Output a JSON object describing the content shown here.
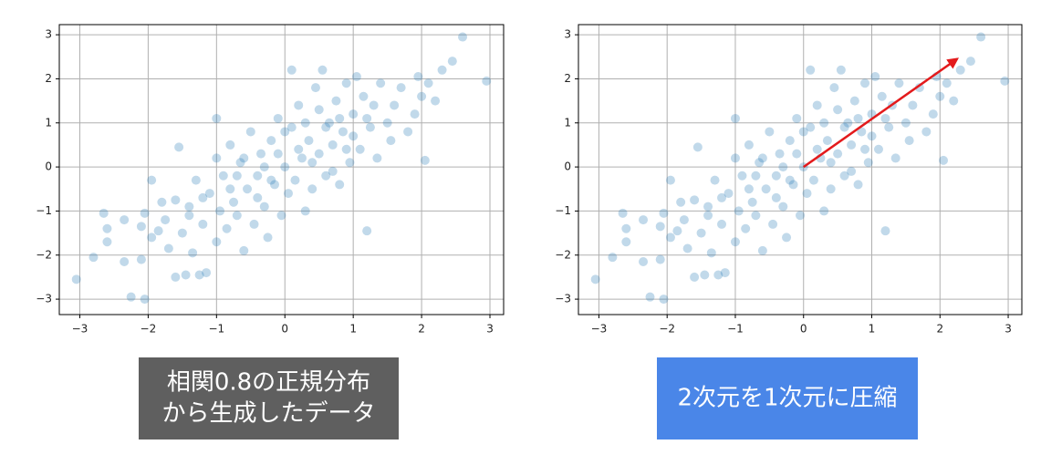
{
  "chart_data": [
    {
      "type": "scatter",
      "color": "#1f77b4",
      "grid": true,
      "caption": [
        "相関0.8の正規分布",
        "から生成したデータ"
      ],
      "caption_color": "#5f5f5f",
      "xlim": [
        -3.3,
        3.2
      ],
      "ylim": [
        -3.35,
        3.23
      ],
      "xticks": [
        {
          "value": -3,
          "label": "−3"
        },
        {
          "value": -2,
          "label": "−2"
        },
        {
          "value": -1,
          "label": "−1"
        },
        0,
        1,
        2,
        3
      ],
      "yticks": [
        {
          "value": -3,
          "label": "−3"
        },
        {
          "value": -2,
          "label": "−2"
        },
        {
          "value": -1,
          "label": "−1"
        },
        0,
        1,
        2,
        3
      ],
      "x": [
        -3.05,
        -2.8,
        -2.65,
        -2.6,
        -2.6,
        -2.35,
        -2.35,
        -2.25,
        -2.1,
        -2.1,
        -2.05,
        -2.05,
        -1.95,
        -1.95,
        -1.85,
        -1.8,
        -1.75,
        -1.7,
        -1.6,
        -1.6,
        -1.55,
        -1.5,
        -1.45,
        -1.4,
        -1.35,
        -1.3,
        -1.25,
        -1.2,
        -1.15,
        -1.1,
        -1.0,
        -1.0,
        -1.0,
        -0.95,
        -0.9,
        -0.85,
        -0.8,
        -0.75,
        -0.7,
        -0.65,
        -0.6,
        -0.55,
        -0.5,
        -0.45,
        -0.4,
        -0.35,
        -0.3,
        -0.25,
        -0.2,
        -0.15,
        -0.1,
        -0.05,
        0.0,
        0.05,
        0.1,
        0.1,
        0.15,
        0.2,
        0.25,
        0.3,
        0.35,
        0.4,
        0.45,
        0.5,
        0.55,
        0.6,
        0.65,
        0.7,
        0.75,
        0.8,
        0.85,
        0.9,
        0.95,
        1.0,
        1.05,
        1.1,
        1.15,
        1.2,
        1.25,
        1.3,
        1.35,
        1.4,
        1.5,
        1.55,
        1.6,
        1.7,
        1.8,
        1.9,
        1.95,
        2.0,
        2.05,
        2.1,
        2.2,
        2.3,
        2.45,
        2.6,
        2.95,
        -0.6,
        -0.3,
        0.2,
        0.4,
        -0.2,
        0.6,
        0.3,
        -0.8,
        -1.2,
        0.8,
        1.0,
        -0.4,
        0.5,
        -0.1,
        0.9,
        -0.7,
        1.2,
        -1.4,
        0.0,
        0.7
      ],
      "y": [
        -2.55,
        -2.05,
        -1.05,
        -1.4,
        -1.7,
        -1.2,
        -2.15,
        -2.95,
        -1.35,
        -2.1,
        -3.0,
        -1.05,
        -1.6,
        -0.3,
        -1.45,
        -0.8,
        -1.2,
        -1.85,
        -0.75,
        -2.5,
        0.45,
        -1.5,
        -2.45,
        -0.9,
        -1.95,
        -0.3,
        -2.45,
        -1.3,
        -2.4,
        -0.6,
        -1.7,
        0.2,
        1.1,
        -1.0,
        -0.2,
        -1.4,
        0.5,
        -0.8,
        -1.1,
        0.1,
        -1.9,
        -0.5,
        0.8,
        -1.3,
        -0.2,
        0.3,
        -0.9,
        -1.6,
        0.6,
        -0.4,
        1.1,
        -1.1,
        0.0,
        -0.6,
        0.9,
        2.2,
        -0.3,
        1.4,
        0.2,
        -1.0,
        0.6,
        -0.5,
        1.8,
        0.3,
        2.2,
        -0.2,
        1.0,
        0.5,
        1.5,
        -0.4,
        0.8,
        1.9,
        0.1,
        1.2,
        2.05,
        0.4,
        1.6,
        -1.45,
        0.9,
        1.4,
        0.2,
        1.9,
        1.0,
        0.6,
        1.4,
        1.8,
        0.8,
        1.2,
        2.05,
        1.6,
        0.15,
        1.9,
        1.5,
        2.2,
        2.4,
        2.95,
        1.95,
        0.2,
        0.0,
        0.4,
        0.1,
        -0.3,
        0.9,
        1.0,
        -0.5,
        -0.7,
        1.1,
        0.7,
        -0.7,
        1.3,
        0.3,
        0.4,
        -0.2,
        1.1,
        -1.1,
        0.8,
        -0.1
      ]
    },
    {
      "type": "scatter",
      "color": "#1f77b4",
      "grid": true,
      "caption": [
        "2次元を1次元に圧縮"
      ],
      "caption_color": "#4a86e8",
      "arrow": {
        "x": [
          0,
          2.25
        ],
        "y": [
          0,
          2.45
        ],
        "color": "#e31a1c"
      },
      "xlim": [
        -3.3,
        3.2
      ],
      "ylim": [
        -3.35,
        3.23
      ],
      "xticks": [
        {
          "value": -3,
          "label": "−3"
        },
        {
          "value": -2,
          "label": "−2"
        },
        {
          "value": -1,
          "label": "−1"
        },
        0,
        1,
        2,
        3
      ],
      "yticks": [
        {
          "value": -3,
          "label": "−3"
        },
        {
          "value": -2,
          "label": "−2"
        },
        {
          "value": -1,
          "label": "−1"
        },
        0,
        1,
        2,
        3
      ],
      "x": [
        -3.05,
        -2.8,
        -2.65,
        -2.6,
        -2.6,
        -2.35,
        -2.35,
        -2.25,
        -2.1,
        -2.1,
        -2.05,
        -2.05,
        -1.95,
        -1.95,
        -1.85,
        -1.8,
        -1.75,
        -1.7,
        -1.6,
        -1.6,
        -1.55,
        -1.5,
        -1.45,
        -1.4,
        -1.35,
        -1.3,
        -1.25,
        -1.2,
        -1.15,
        -1.1,
        -1.0,
        -1.0,
        -1.0,
        -0.95,
        -0.9,
        -0.85,
        -0.8,
        -0.75,
        -0.7,
        -0.65,
        -0.6,
        -0.55,
        -0.5,
        -0.45,
        -0.4,
        -0.35,
        -0.3,
        -0.25,
        -0.2,
        -0.15,
        -0.1,
        -0.05,
        0.0,
        0.05,
        0.1,
        0.1,
        0.15,
        0.2,
        0.25,
        0.3,
        0.35,
        0.4,
        0.45,
        0.5,
        0.55,
        0.6,
        0.65,
        0.7,
        0.75,
        0.8,
        0.85,
        0.9,
        0.95,
        1.0,
        1.05,
        1.1,
        1.15,
        1.2,
        1.25,
        1.3,
        1.35,
        1.4,
        1.5,
        1.55,
        1.6,
        1.7,
        1.8,
        1.9,
        1.95,
        2.0,
        2.05,
        2.1,
        2.2,
        2.3,
        2.45,
        2.6,
        2.95,
        -0.6,
        -0.3,
        0.2,
        0.4,
        -0.2,
        0.6,
        0.3,
        -0.8,
        -1.2,
        0.8,
        1.0,
        -0.4,
        0.5,
        -0.1,
        0.9,
        -0.7,
        1.2,
        -1.4,
        0.0,
        0.7
      ],
      "y": [
        -2.55,
        -2.05,
        -1.05,
        -1.4,
        -1.7,
        -1.2,
        -2.15,
        -2.95,
        -1.35,
        -2.1,
        -3.0,
        -1.05,
        -1.6,
        -0.3,
        -1.45,
        -0.8,
        -1.2,
        -1.85,
        -0.75,
        -2.5,
        0.45,
        -1.5,
        -2.45,
        -0.9,
        -1.95,
        -0.3,
        -2.45,
        -1.3,
        -2.4,
        -0.6,
        -1.7,
        0.2,
        1.1,
        -1.0,
        -0.2,
        -1.4,
        0.5,
        -0.8,
        -1.1,
        0.1,
        -1.9,
        -0.5,
        0.8,
        -1.3,
        -0.2,
        0.3,
        -0.9,
        -1.6,
        0.6,
        -0.4,
        1.1,
        -1.1,
        0.0,
        -0.6,
        0.9,
        2.2,
        -0.3,
        1.4,
        0.2,
        -1.0,
        0.6,
        -0.5,
        1.8,
        0.3,
        2.2,
        -0.2,
        1.0,
        0.5,
        1.5,
        -0.4,
        0.8,
        1.9,
        0.1,
        1.2,
        2.05,
        0.4,
        1.6,
        -1.45,
        0.9,
        1.4,
        0.2,
        1.9,
        1.0,
        0.6,
        1.4,
        1.8,
        0.8,
        1.2,
        2.05,
        1.6,
        0.15,
        1.9,
        1.5,
        2.2,
        2.4,
        2.95,
        1.95,
        0.2,
        0.0,
        0.4,
        0.1,
        -0.3,
        0.9,
        1.0,
        -0.5,
        -0.7,
        1.1,
        0.7,
        -0.7,
        1.3,
        0.3,
        0.4,
        -0.2,
        1.1,
        -1.1,
        0.8,
        -0.1
      ]
    }
  ]
}
